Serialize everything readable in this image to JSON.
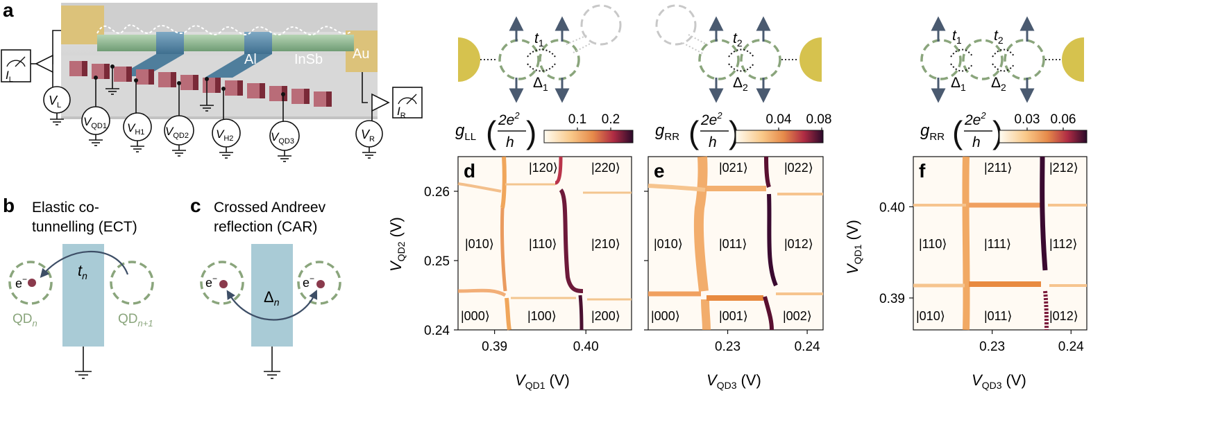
{
  "panel_labels": {
    "a": "a",
    "b": "b",
    "c": "c",
    "d": "d",
    "e": "e",
    "f": "f"
  },
  "device": {
    "materials": [
      "Al",
      "InSb",
      "Au"
    ],
    "currents": [
      {
        "sym": "I",
        "sub": "L"
      },
      {
        "sym": "I",
        "sub": "R"
      }
    ],
    "voltages": [
      {
        "sym": "V",
        "sub": "L"
      },
      {
        "sym": "V",
        "sub": "QD1"
      },
      {
        "sym": "V",
        "sub": "H1"
      },
      {
        "sym": "V",
        "sub": "QD2"
      },
      {
        "sym": "V",
        "sub": "H2"
      },
      {
        "sym": "V",
        "sub": "QD3"
      },
      {
        "sym": "V",
        "sub": "R"
      }
    ]
  },
  "ect": {
    "title_line1": "Elastic co-",
    "title_line2": "tunnelling (ECT)",
    "coupling": "t",
    "coupling_sub": "n",
    "electron": "e",
    "charge": "−",
    "qd_left": "QD",
    "qd_left_sub": "n",
    "qd_right": "QD",
    "qd_right_sub": "n+1"
  },
  "car": {
    "title_line1": "Crossed Andreev",
    "title_line2": "reflection (CAR)",
    "coupling": "Δ",
    "coupling_sub": "n",
    "electron": "e",
    "charge": "−"
  },
  "schematics": [
    {
      "t": "t",
      "t_sub": "1",
      "d": "Δ",
      "d_sub": "1"
    },
    {
      "t": "t",
      "t_sub": "2",
      "d": "Δ",
      "d_sub": "2"
    },
    {
      "t1": "t",
      "t1_sub": "1",
      "t2": "t",
      "t2_sub": "2",
      "d1": "Δ",
      "d1_sub": "1",
      "d2": "Δ",
      "d2_sub": "2"
    }
  ],
  "colorbars": [
    {
      "g": "g",
      "g_sub": "LL",
      "unit_num": "2e",
      "unit_sup": "2",
      "unit_den": "h",
      "ticks": [
        "0.1",
        "0.2"
      ]
    },
    {
      "g": "g",
      "g_sub": "RR",
      "unit_num": "2e",
      "unit_sup": "2",
      "unit_den": "h",
      "ticks": [
        "0.04",
        "0.08"
      ]
    },
    {
      "g": "g",
      "g_sub": "RR",
      "unit_num": "2e",
      "unit_sup": "2",
      "unit_den": "h",
      "ticks": [
        "0.03",
        "0.06"
      ]
    }
  ],
  "chart_data": [
    {
      "type": "heatmap",
      "panel": "d",
      "x_sym": "V",
      "x_sub": "QD1",
      "x_unit": "(V)",
      "y_sym": "V",
      "y_sub": "QD2",
      "y_unit": "(V)",
      "xlim": [
        0.386,
        0.405
      ],
      "ylim": [
        0.24,
        0.265
      ],
      "xticks": [
        {
          "v": 0.39,
          "label": "0.39"
        },
        {
          "v": 0.4,
          "label": "0.40"
        }
      ],
      "yticks": [
        {
          "v": 0.24,
          "label": "0.24"
        },
        {
          "v": 0.25,
          "label": "0.25"
        },
        {
          "v": 0.26,
          "label": "0.26"
        }
      ],
      "state_labels": [
        "|120⟩",
        "|220⟩",
        "|010⟩",
        "|110⟩",
        "|210⟩",
        "|000⟩",
        "|100⟩",
        "|200⟩"
      ],
      "colorbar": "gLL"
    },
    {
      "type": "heatmap",
      "panel": "e",
      "x_sym": "V",
      "x_sub": "QD3",
      "x_unit": "(V)",
      "xlim": [
        0.22,
        0.242
      ],
      "ylim": [
        0.24,
        0.265
      ],
      "xticks": [
        {
          "v": 0.23,
          "label": "0.23"
        },
        {
          "v": 0.24,
          "label": "0.24"
        }
      ],
      "state_labels": [
        "|021⟩",
        "|022⟩",
        "|010⟩",
        "|011⟩",
        "|012⟩",
        "|000⟩",
        "|001⟩",
        "|002⟩"
      ],
      "colorbar": "gRR"
    },
    {
      "type": "heatmap",
      "panel": "f",
      "x_sym": "V",
      "x_sub": "QD3",
      "x_unit": "(V)",
      "y_sym": "V",
      "y_sub": "QD1",
      "y_unit": "(V)",
      "xlim": [
        0.22,
        0.242
      ],
      "ylim": [
        0.3865,
        0.4055
      ],
      "xticks": [
        {
          "v": 0.23,
          "label": "0.23"
        },
        {
          "v": 0.24,
          "label": "0.24"
        }
      ],
      "yticks": [
        {
          "v": 0.39,
          "label": "0.39"
        },
        {
          "v": 0.4,
          "label": "0.40"
        }
      ],
      "state_labels": [
        "|211⟩",
        "|212⟩",
        "|110⟩",
        "|111⟩",
        "|112⟩",
        "|010⟩",
        "|011⟩",
        "|012⟩"
      ],
      "colorbar": "gRR"
    }
  ],
  "colors": {
    "superconductor": "#d6c24e",
    "dot_ring": "#8aa57c",
    "arrow": "#4a5a70",
    "electron": "#8a3a4c",
    "bar": "#a9cbd6",
    "nanowire": "#8cba90",
    "gate": "#b86a76"
  }
}
